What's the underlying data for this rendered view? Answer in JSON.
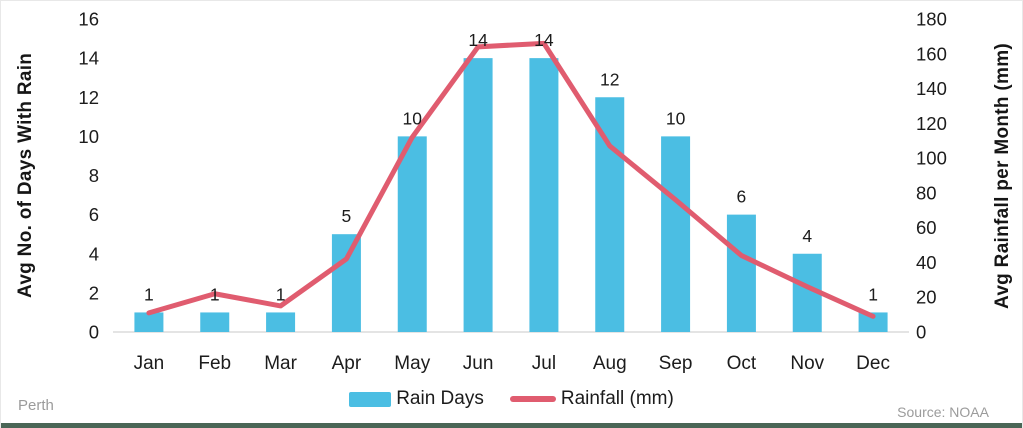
{
  "chart_data": {
    "type": "bar+line combo",
    "categories": [
      "Jan",
      "Feb",
      "Mar",
      "Apr",
      "May",
      "Jun",
      "Jul",
      "Aug",
      "Sep",
      "Oct",
      "Nov",
      "Dec"
    ],
    "series": [
      {
        "name": "Rain Days",
        "type": "bar",
        "axis": "left",
        "color": "#4BBEE3",
        "values": [
          1,
          1,
          1,
          5,
          10,
          14,
          14,
          12,
          10,
          6,
          4,
          1
        ],
        "data_labels": [
          "1",
          "1",
          "1",
          "5",
          "10",
          "14",
          "14",
          "12",
          "10",
          "6",
          "4",
          "1"
        ]
      },
      {
        "name": "Rainfall (mm)",
        "type": "line",
        "axis": "right",
        "color": "#E05C6F",
        "values": [
          11,
          22,
          15,
          42,
          112,
          164,
          166,
          107,
          76,
          44,
          26,
          9
        ]
      }
    ],
    "left_axis": {
      "title": "Avg No. of Days With Rain",
      "min": 0,
      "max": 16,
      "tick_step": 2,
      "ticks": [
        0,
        2,
        4,
        6,
        8,
        10,
        12,
        14,
        16
      ]
    },
    "right_axis": {
      "title": "Avg Rainfall per Month (mm)",
      "min": 0,
      "max": 180,
      "tick_step": 20,
      "ticks": [
        0,
        20,
        40,
        60,
        80,
        100,
        120,
        140,
        160,
        180
      ]
    },
    "grid": "baseline only",
    "legend_position": "bottom-center"
  },
  "legend": {
    "items": [
      {
        "label": "Rain Days",
        "swatch": "bar-swatch",
        "color": "#4BBEE3"
      },
      {
        "label": "Rainfall (mm)",
        "swatch": "line-swatch",
        "color": "#E05C6F"
      }
    ]
  },
  "footer": {
    "location": "Perth",
    "source": "Source: NOAA"
  },
  "colors": {
    "bar": "#4BBEE3",
    "line": "#E05C6F",
    "text": "#1c1c1c",
    "muted_text": "#9b9b9b",
    "baseline": "#dcdcdc",
    "canvas_border": "#e8e8e8",
    "bottom_accent": "#4A6656"
  }
}
